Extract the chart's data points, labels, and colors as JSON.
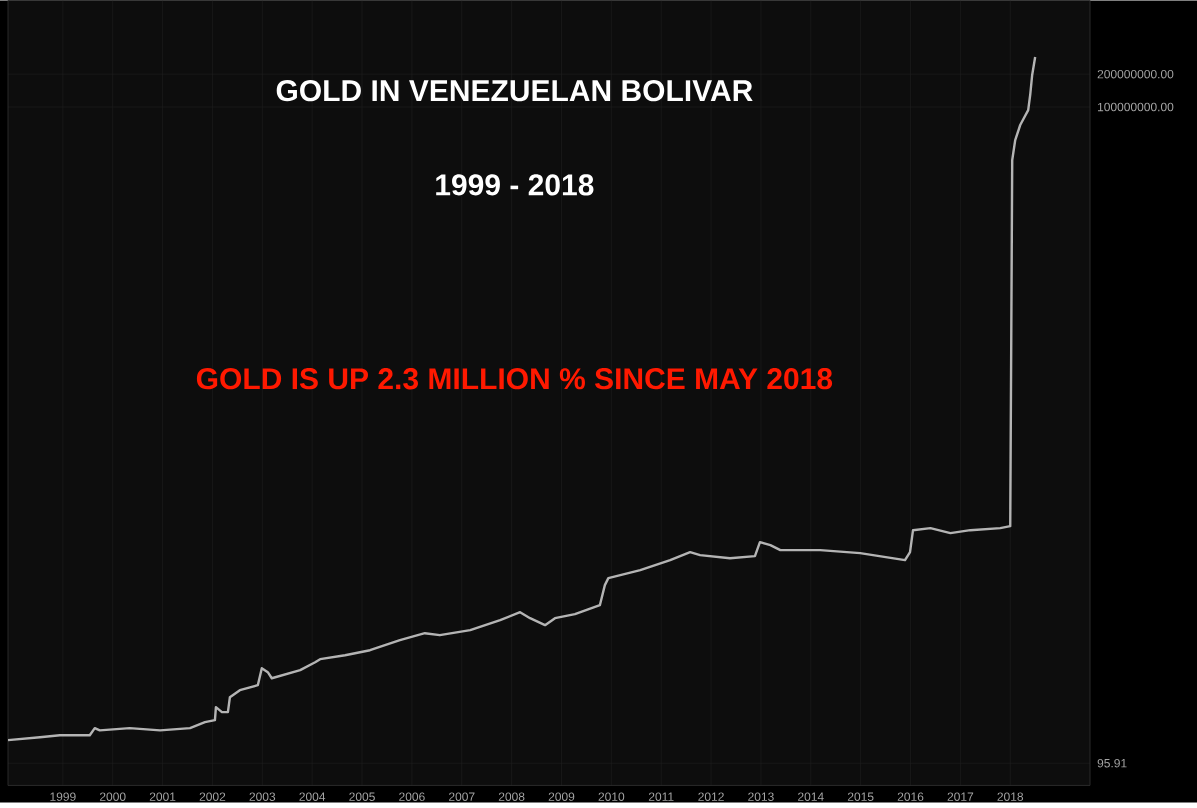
{
  "chart_data": {
    "type": "line",
    "title": "GOLD IN VENEZUELAN BOLIVAR",
    "subtitle": "1999  -  2018",
    "annotations": [
      "GOLD IS UP 2.3 MILLION % SINCE MAY 2018"
    ],
    "log": "y",
    "grid": true,
    "marker": "none",
    "line_style": "solid",
    "xlim": [
      1997.9,
      2019.6
    ],
    "ylim": [
      60,
      950000000
    ],
    "xticks": [
      1999,
      2000,
      2001,
      2002,
      2003,
      2004,
      2005,
      2006,
      2007,
      2008,
      2009,
      2010,
      2011,
      2012,
      2013,
      2014,
      2015,
      2016,
      2017,
      2018
    ],
    "yticks": [
      {
        "value": 95.91,
        "label": "95.91"
      },
      {
        "value": 100000000,
        "label": "100000000.00"
      },
      {
        "value": 200000000,
        "label": "200000000.00"
      }
    ],
    "x": [
      1997.9,
      1998.54,
      1998.94,
      1999.54,
      1999.64,
      1999.74,
      2000.34,
      2000.95,
      2001.55,
      2001.85,
      2002.05,
      2002.07,
      2002.19,
      2002.31,
      2002.35,
      2002.55,
      2002.91,
      2002.99,
      2003.11,
      2003.19,
      2003.76,
      2004.06,
      2004.16,
      2004.66,
      2005.16,
      2005.76,
      2006.26,
      2006.56,
      2007.17,
      2007.77,
      2008.17,
      2008.37,
      2008.67,
      2008.87,
      2009.27,
      2009.77,
      2009.87,
      2009.94,
      2010.58,
      2011.18,
      2011.58,
      2011.78,
      2012.38,
      2012.88,
      2012.98,
      2013.19,
      2013.39,
      2014.19,
      2014.99,
      2015.89,
      2015.99,
      2016.05,
      2016.4,
      2016.8,
      2017.2,
      2017.8,
      2018.0,
      2018.04,
      2018.1,
      2018.2,
      2018.36,
      2018.4,
      2018.44,
      2018.5
    ],
    "series": [
      {
        "color": "#b4b4b4",
        "values": [
          156,
          166,
          173,
          173,
          201,
          192,
          201,
          192,
          201,
          228,
          238,
          313,
          282,
          282,
          386,
          448,
          498,
          713,
          656,
          577,
          684,
          809,
          863,
          938,
          1042,
          1288,
          1493,
          1432,
          1592,
          1968,
          2328,
          2051,
          1770,
          2051,
          2234,
          2698,
          4121,
          4775,
          5649,
          6982,
          8260,
          7762,
          7278,
          7603,
          10210,
          9594,
          8630,
          8630,
          8091,
          6982,
          8260,
          13150,
          13740,
          12360,
          13150,
          13740,
          14320,
          32660000,
          49780000,
          68390000,
          93760000,
          128800000,
          196700000,
          287700000
        ]
      }
    ]
  }
}
